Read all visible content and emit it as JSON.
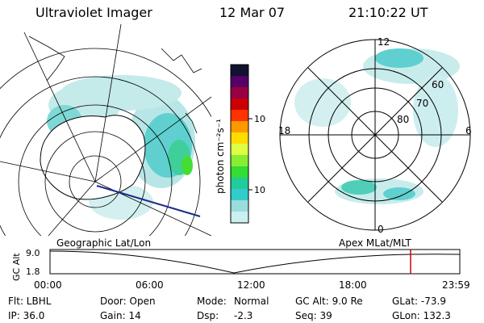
{
  "header": {
    "title": "Ultraviolet Imager",
    "date": "12 Mar 07",
    "time": "21:10:22 UT"
  },
  "colorbar": {
    "label": "photon cm⁻²s⁻¹",
    "ticks": [
      "100",
      "10"
    ],
    "colors": [
      "#111133",
      "#550066",
      "#990044",
      "#cc0000",
      "#ff3300",
      "#ff9900",
      "#ffdd00",
      "#ddff44",
      "#88ee33",
      "#33dd33",
      "#22cc99",
      "#33cccc",
      "#99dddd",
      "#ccefef"
    ]
  },
  "left_map": {
    "label": "Geographic Lat/Lon"
  },
  "right_map": {
    "label": "Apex  MLat/MLT",
    "mlt_labels": [
      "12",
      "18",
      "6",
      "0"
    ],
    "lat_labels": [
      "60",
      "70",
      "80"
    ]
  },
  "timeline": {
    "ylabel": "GC Alt",
    "y_ticks": [
      "9.0",
      "1.8"
    ],
    "x_ticks": [
      "00:00",
      "06:00",
      "12:00",
      "18:00",
      "23:59"
    ],
    "marker_color": "#cc0000"
  },
  "info": {
    "filter": "Flt: LBHL",
    "ip": "IP: 36.0",
    "door": "Door: Open",
    "gain": "Gain: 14",
    "mode_label": "Mode:",
    "mode_value": "Normal",
    "dsp_label": "Dsp:",
    "dsp_value": "-2.3",
    "gc_alt": "GC Alt: 9.0 Re",
    "seq": "Seq: 39",
    "glat": "GLat: -73.9",
    "glon": "GLon: 132.3"
  }
}
